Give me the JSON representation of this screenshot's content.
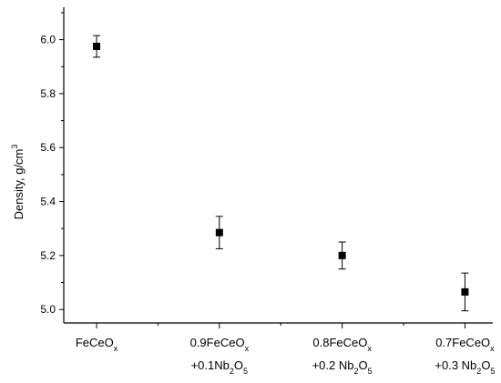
{
  "chart_data": {
    "type": "scatter",
    "ylabel": {
      "text": "Density, g/cm",
      "sup": "3"
    },
    "xlabel": "",
    "ylim": [
      4.95,
      6.12
    ],
    "yticks": [
      "5.0",
      "5.2",
      "5.4",
      "5.6",
      "5.8",
      "6.0"
    ],
    "grid": false,
    "legend": "none",
    "marker": "square",
    "color": "#000000",
    "categories": [
      {
        "lines": [
          [
            {
              "t": "FeCeO",
              "s": "n"
            },
            {
              "t": "x",
              "s": "sub"
            }
          ]
        ]
      },
      {
        "lines": [
          [
            {
              "t": "0.9FeCeO",
              "s": "n"
            },
            {
              "t": "x",
              "s": "sub"
            }
          ],
          [
            {
              "t": "+0.1Nb",
              "s": "n"
            },
            {
              "t": "2",
              "s": "sub"
            },
            {
              "t": "O",
              "s": "n"
            },
            {
              "t": "5",
              "s": "sub"
            }
          ]
        ]
      },
      {
        "lines": [
          [
            {
              "t": "0.8FeCeO",
              "s": "n"
            },
            {
              "t": "x",
              "s": "sub"
            }
          ],
          [
            {
              "t": "+0.2 Nb",
              "s": "n"
            },
            {
              "t": "2",
              "s": "sub"
            },
            {
              "t": "O",
              "s": "n"
            },
            {
              "t": "5",
              "s": "sub"
            }
          ]
        ]
      },
      {
        "lines": [
          [
            {
              "t": "0.7FeCeO",
              "s": "n"
            },
            {
              "t": "x",
              "s": "sub"
            }
          ],
          [
            {
              "t": "+0.3 Nb",
              "s": "n"
            },
            {
              "t": "2",
              "s": "sub"
            },
            {
              "t": "O",
              "s": "n"
            },
            {
              "t": "5",
              "s": "sub"
            }
          ]
        ]
      }
    ],
    "series": [
      {
        "values": [
          5.975,
          5.285,
          5.2,
          5.065
        ],
        "errors": [
          0.04,
          0.06,
          0.05,
          0.07
        ]
      }
    ]
  }
}
